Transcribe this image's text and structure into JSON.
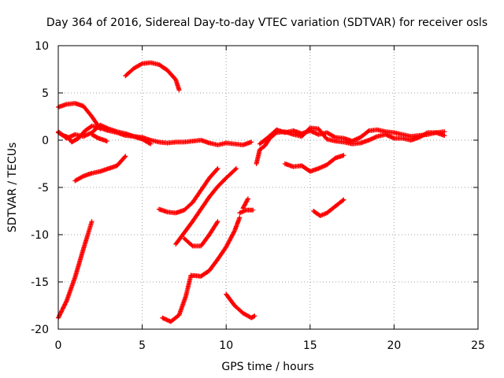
{
  "chart_data": {
    "type": "scatter",
    "title": "Day 364 of 2016, Sidereal Day-to-day VTEC variation (SDTVAR) for receiver osls",
    "xlabel": "GPS time / hours",
    "ylabel": "SDTVAR / TECUs",
    "xlim": [
      0,
      25
    ],
    "ylim": [
      -20,
      10
    ],
    "xticks": [
      0,
      5,
      10,
      15,
      20,
      25
    ],
    "yticks": [
      -20,
      -15,
      -10,
      -5,
      0,
      5,
      10
    ],
    "grid": true,
    "marker": "plus",
    "series_color": "#ff0000",
    "tracks": [
      [
        [
          0,
          3.5
        ],
        [
          0.5,
          3.8
        ],
        [
          1.0,
          3.9
        ],
        [
          1.5,
          3.6
        ],
        [
          2.0,
          2.5
        ],
        [
          2.5,
          1.2
        ]
      ],
      [
        [
          0,
          0.8
        ],
        [
          0.3,
          0.5
        ],
        [
          0.6,
          0.3
        ],
        [
          0.8,
          -0.2
        ],
        [
          1.2,
          0.2
        ],
        [
          1.6,
          1.0
        ],
        [
          2.0,
          1.5
        ],
        [
          2.5,
          1.3
        ],
        [
          3.0,
          1.0
        ],
        [
          3.5,
          0.8
        ],
        [
          4.0,
          0.5
        ],
        [
          4.5,
          0.4
        ],
        [
          5.0,
          0.3
        ],
        [
          5.5,
          0.0
        ],
        [
          6.0,
          -0.2
        ],
        [
          6.5,
          -0.3
        ],
        [
          7.0,
          -0.2
        ],
        [
          7.5,
          -0.2
        ],
        [
          8.0,
          -0.1
        ],
        [
          8.5,
          0.0
        ],
        [
          9.0,
          -0.3
        ],
        [
          9.5,
          -0.5
        ],
        [
          10.0,
          -0.3
        ],
        [
          10.5,
          -0.4
        ],
        [
          11.0,
          -0.5
        ],
        [
          11.5,
          -0.2
        ]
      ],
      [
        [
          0,
          0.9
        ],
        [
          0.5,
          0.2
        ],
        [
          1.0,
          0.6
        ],
        [
          1.5,
          0.4
        ],
        [
          2.0,
          0.8
        ],
        [
          2.5,
          1.6
        ],
        [
          3.0,
          1.2
        ],
        [
          3.5,
          0.9
        ],
        [
          4.0,
          0.7
        ],
        [
          4.5,
          0.4
        ],
        [
          5.0,
          0.1
        ],
        [
          5.5,
          -0.4
        ]
      ],
      [
        [
          2.0,
          0.6
        ],
        [
          2.4,
          0.2
        ],
        [
          2.9,
          -0.1
        ]
      ],
      [
        [
          4.0,
          6.8
        ],
        [
          4.5,
          7.6
        ],
        [
          5.0,
          8.1
        ],
        [
          5.5,
          8.2
        ],
        [
          6.0,
          8.0
        ],
        [
          6.5,
          7.4
        ],
        [
          7.0,
          6.4
        ],
        [
          7.2,
          5.3
        ]
      ],
      [
        [
          1.0,
          -4.3
        ],
        [
          1.5,
          -3.8
        ],
        [
          2.0,
          -3.5
        ],
        [
          2.5,
          -3.3
        ],
        [
          3.0,
          -3.0
        ],
        [
          3.5,
          -2.7
        ],
        [
          4.0,
          -1.7
        ]
      ],
      [
        [
          0,
          -18.8
        ],
        [
          0.5,
          -17.0
        ],
        [
          1.0,
          -14.5
        ],
        [
          1.5,
          -11.5
        ],
        [
          2.0,
          -8.6
        ]
      ],
      [
        [
          6.0,
          -7.3
        ],
        [
          6.5,
          -7.6
        ],
        [
          7.0,
          -7.7
        ],
        [
          7.5,
          -7.4
        ],
        [
          8.0,
          -6.6
        ],
        [
          8.5,
          -5.3
        ],
        [
          9.0,
          -4.0
        ],
        [
          9.5,
          -3.0
        ]
      ],
      [
        [
          7.0,
          -11.0
        ],
        [
          7.5,
          -9.8
        ],
        [
          8.0,
          -8.6
        ],
        [
          8.5,
          -7.3
        ],
        [
          9.0,
          -6.0
        ],
        [
          9.5,
          -4.9
        ],
        [
          10.0,
          -4.0
        ],
        [
          10.6,
          -3.0
        ]
      ],
      [
        [
          7.5,
          -10.4
        ],
        [
          8.0,
          -11.2
        ],
        [
          8.5,
          -11.2
        ],
        [
          9.0,
          -10.0
        ],
        [
          9.5,
          -8.6
        ]
      ],
      [
        [
          6.2,
          -18.8
        ],
        [
          6.7,
          -19.2
        ],
        [
          7.2,
          -18.5
        ],
        [
          7.6,
          -16.5
        ],
        [
          7.9,
          -14.3
        ],
        [
          8.5,
          -14.4
        ],
        [
          9.0,
          -13.8
        ],
        [
          9.5,
          -12.6
        ],
        [
          10.0,
          -11.3
        ],
        [
          10.5,
          -9.6
        ],
        [
          10.8,
          -8.2
        ]
      ],
      [
        [
          10.8,
          -7.7
        ],
        [
          11.2,
          -7.4
        ],
        [
          11.6,
          -7.4
        ]
      ],
      [
        [
          11.0,
          -7.2
        ],
        [
          11.3,
          -6.2
        ]
      ],
      [
        [
          10.0,
          -16.3
        ],
        [
          10.5,
          -17.5
        ],
        [
          11.0,
          -18.3
        ],
        [
          11.5,
          -18.8
        ],
        [
          11.7,
          -18.6
        ]
      ],
      [
        [
          11.8,
          -2.5
        ],
        [
          12.0,
          -1.0
        ],
        [
          12.3,
          -0.6
        ],
        [
          12.6,
          0.2
        ],
        [
          13.0,
          0.8
        ],
        [
          13.5,
          0.9
        ],
        [
          14.0,
          0.6
        ],
        [
          14.5,
          0.4
        ],
        [
          15.0,
          1.3
        ],
        [
          15.5,
          1.2
        ],
        [
          16.0,
          0.1
        ],
        [
          16.5,
          -0.1
        ],
        [
          17.0,
          -0.2
        ],
        [
          17.5,
          -0.4
        ],
        [
          18.0,
          -0.3
        ],
        [
          18.5,
          0.0
        ],
        [
          19.0,
          0.4
        ],
        [
          19.5,
          0.6
        ],
        [
          20.0,
          0.2
        ],
        [
          20.5,
          0.2
        ],
        [
          21.0,
          0.0
        ],
        [
          21.5,
          0.3
        ],
        [
          22.0,
          0.8
        ],
        [
          22.5,
          0.8
        ],
        [
          23.0,
          0.5
        ]
      ],
      [
        [
          12.0,
          -0.4
        ],
        [
          12.5,
          0.3
        ],
        [
          13.0,
          1.1
        ],
        [
          13.5,
          0.8
        ],
        [
          14.0,
          1.0
        ],
        [
          14.5,
          0.7
        ],
        [
          15.0,
          1.0
        ],
        [
          15.5,
          0.6
        ],
        [
          16.0,
          0.8
        ],
        [
          16.5,
          0.3
        ],
        [
          17.0,
          0.2
        ],
        [
          17.5,
          -0.1
        ],
        [
          18.0,
          0.3
        ],
        [
          18.5,
          1.0
        ],
        [
          19.0,
          1.1
        ],
        [
          19.5,
          0.9
        ],
        [
          20.0,
          0.8
        ],
        [
          20.5,
          0.6
        ],
        [
          21.0,
          0.4
        ],
        [
          21.5,
          0.5
        ],
        [
          22.0,
          0.6
        ],
        [
          22.5,
          0.8
        ],
        [
          23.0,
          0.9
        ]
      ],
      [
        [
          13.5,
          -2.5
        ],
        [
          14.0,
          -2.8
        ],
        [
          14.5,
          -2.7
        ],
        [
          15.0,
          -3.3
        ],
        [
          15.5,
          -3.0
        ],
        [
          16.0,
          -2.6
        ],
        [
          16.5,
          -1.9
        ],
        [
          17.0,
          -1.6
        ]
      ],
      [
        [
          15.2,
          -7.5
        ],
        [
          15.6,
          -8.0
        ],
        [
          16.0,
          -7.7
        ],
        [
          16.5,
          -7.0
        ],
        [
          17.0,
          -6.3
        ]
      ]
    ]
  }
}
